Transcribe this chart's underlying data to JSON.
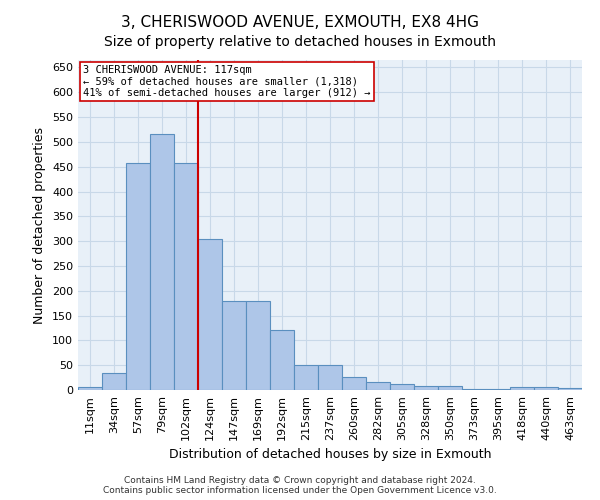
{
  "title": "3, CHERISWOOD AVENUE, EXMOUTH, EX8 4HG",
  "subtitle": "Size of property relative to detached houses in Exmouth",
  "xlabel": "Distribution of detached houses by size in Exmouth",
  "ylabel": "Number of detached properties",
  "bar_labels": [
    "11sqm",
    "34sqm",
    "57sqm",
    "79sqm",
    "102sqm",
    "124sqm",
    "147sqm",
    "169sqm",
    "192sqm",
    "215sqm",
    "237sqm",
    "260sqm",
    "282sqm",
    "305sqm",
    "328sqm",
    "350sqm",
    "373sqm",
    "395sqm",
    "418sqm",
    "440sqm",
    "463sqm"
  ],
  "bar_values": [
    7,
    35,
    457,
    515,
    457,
    305,
    180,
    180,
    120,
    50,
    50,
    27,
    17,
    13,
    9,
    9,
    2,
    2,
    7,
    7,
    4
  ],
  "bar_color": "#aec6e8",
  "bar_edge_color": "#5a8fbf",
  "vline_x": 4.5,
  "vline_color": "#cc0000",
  "annotation_line1": "3 CHERISWOOD AVENUE: 117sqm",
  "annotation_line2": "← 59% of detached houses are smaller (1,318)",
  "annotation_line3": "41% of semi-detached houses are larger (912) →",
  "annotation_box_color": "#ffffff",
  "annotation_box_edge": "#cc0000",
  "ylim": [
    0,
    665
  ],
  "yticks": [
    0,
    50,
    100,
    150,
    200,
    250,
    300,
    350,
    400,
    450,
    500,
    550,
    600,
    650
  ],
  "title_fontsize": 11,
  "subtitle_fontsize": 10,
  "axis_label_fontsize": 9,
  "tick_fontsize": 8,
  "footer_text": "Contains HM Land Registry data © Crown copyright and database right 2024.\nContains public sector information licensed under the Open Government Licence v3.0.",
  "background_color": "#ffffff",
  "grid_color": "#c8d8e8",
  "axes_bg_color": "#e8f0f8"
}
